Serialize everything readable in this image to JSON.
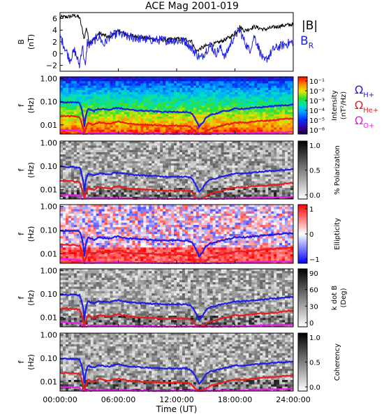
{
  "chart_data": {
    "title": "ACE Mag 2001-019",
    "xlabel": "Time (UT)",
    "x_ticks": [
      "00:00:00",
      "06:00:00",
      "12:00:00",
      "18:00:00",
      "24:00:00"
    ],
    "x_range_hours": [
      0,
      24
    ],
    "panels": [
      {
        "id": "field",
        "type": "line",
        "ylabel_main": "B",
        "ylabel_unit": "(nT)",
        "ylim": [
          -3,
          7
        ],
        "y_ticks": [
          "6",
          "4",
          "2",
          "0",
          "−2"
        ],
        "legend": [
          {
            "label": "|B|",
            "color": "#000000"
          },
          {
            "label": "B",
            "sub": "R",
            "color": "#1e1ee6"
          }
        ],
        "series": [
          {
            "name": "|B|",
            "color": "#000000",
            "x": [
              0,
              1,
              1.5,
              2,
              2.5,
              2.7,
              3,
              3.5,
              4,
              5,
              6,
              7,
              8,
              9,
              10,
              11,
              12,
              13,
              13.5,
              14,
              14.5,
              15,
              16,
              17,
              18,
              18.5,
              19,
              20,
              21,
              22,
              23,
              24
            ],
            "y": [
              6.2,
              6.3,
              6.5,
              6.2,
              2.5,
              4.5,
              2.0,
              2.4,
              3.5,
              2.8,
              3.8,
              3.2,
              2.9,
              2.6,
              2.4,
              2.3,
              2.5,
              2.4,
              2.2,
              0.4,
              0.9,
              1.3,
              1.7,
              2.4,
              3.3,
              4.6,
              3.9,
              4.6,
              4.1,
              4.5,
              4.8,
              5.0
            ]
          },
          {
            "name": "B_R",
            "color": "#1e1ee6",
            "x": [
              0,
              0.5,
              1,
              1.5,
              2,
              2.3,
              2.6,
              2.8,
              3,
              3.5,
              4,
              4.5,
              5,
              6,
              7,
              8,
              9,
              10,
              11,
              12,
              13,
              13.5,
              14,
              14.5,
              15,
              15.5,
              16,
              16.5,
              17,
              17.5,
              18,
              18.5,
              19,
              19.5,
              20,
              21,
              22,
              23,
              24
            ],
            "y": [
              3.0,
              1.0,
              -1.0,
              0.5,
              -2.0,
              1.5,
              -2.5,
              2.0,
              1.5,
              2.2,
              3.0,
              1.5,
              2.8,
              3.5,
              2.8,
              2.6,
              2.4,
              2.3,
              2.3,
              2.2,
              2.0,
              1.0,
              0.0,
              -0.8,
              0.5,
              1.5,
              0.0,
              1.0,
              -0.5,
              1.5,
              3.2,
              4.0,
              2.0,
              0.5,
              3.0,
              -1.5,
              0.8,
              1.5,
              2.0
            ]
          }
        ]
      },
      {
        "id": "intensity",
        "type": "heatmap",
        "ylabel_main": "f",
        "ylabel_unit": "(Hz)",
        "ylim": [
          0.004,
          1.2
        ],
        "yscale": "log",
        "y_ticks": [
          "1.00",
          "0.10",
          "0.01"
        ],
        "colorbar": {
          "colormap": "rainbow",
          "labels": [
            "10⁻¹",
            "10⁻²",
            "10⁻³",
            "10⁻⁴",
            "10⁻⁵",
            "10⁻⁶"
          ],
          "title": "Intensity",
          "title2": "(nT²/Hz)"
        }
      },
      {
        "id": "polarization",
        "type": "heatmap",
        "ylabel_main": "f",
        "ylabel_unit": "(Hz)",
        "ylim": [
          0.004,
          1.2
        ],
        "yscale": "log",
        "y_ticks": [
          "1.00",
          "0.10",
          "0.01"
        ],
        "colorbar": {
          "colormap": "gray",
          "labels": [
            "1.0",
            "0.5",
            "0.0"
          ],
          "title": "% Polarization"
        }
      },
      {
        "id": "ellipticity",
        "type": "heatmap",
        "ylabel_main": "f",
        "ylabel_unit": "(Hz)",
        "ylim": [
          0.004,
          1.2
        ],
        "yscale": "log",
        "y_ticks": [
          "1.00",
          "0.10",
          "0.01"
        ],
        "colorbar": {
          "colormap": "bwr",
          "labels": [
            "1",
            "0",
            "−1"
          ],
          "title": "Ellipticity"
        }
      },
      {
        "id": "kdotb",
        "type": "heatmap",
        "ylabel_main": "f",
        "ylabel_unit": "(Hz)",
        "ylim": [
          0.004,
          1.2
        ],
        "yscale": "log",
        "y_ticks": [
          "1.00",
          "0.10",
          "0.01"
        ],
        "colorbar": {
          "colormap": "gray",
          "labels": [
            "90",
            "60",
            "30",
            "0"
          ],
          "title": "k dot B",
          "title2": "(Deg)"
        }
      },
      {
        "id": "coherency",
        "type": "heatmap",
        "ylabel_main": "f",
        "ylabel_unit": "(Hz)",
        "ylim": [
          0.004,
          1.2
        ],
        "yscale": "log",
        "y_ticks": [
          "1.00",
          "0.10",
          "0.01"
        ],
        "colorbar": {
          "colormap": "gray",
          "labels": [
            "1.0",
            "0.5",
            "0.0"
          ],
          "title": "Coherency"
        }
      }
    ],
    "gyrofrequency_legend": [
      {
        "label": "Ω",
        "sub": "H+",
        "color": "#1e1ee6"
      },
      {
        "label": "Ω",
        "sub": "He+",
        "color": "#e61e1e"
      },
      {
        "label": "Ω",
        "sub": "O+",
        "color": "#e61ee6"
      }
    ],
    "gyro_lines": [
      {
        "name": "H+",
        "color": "#1e1ee6",
        "x": [
          0,
          1,
          2,
          2.3,
          2.5,
          2.7,
          2.9,
          3.1,
          3.5,
          4,
          5,
          6,
          7,
          8,
          9,
          10,
          11,
          12,
          13,
          13.5,
          14,
          14.3,
          14.7,
          15,
          15.5,
          16,
          16.5,
          17,
          17.5,
          18,
          19,
          20,
          21,
          22,
          23,
          24
        ],
        "y": [
          0.095,
          0.095,
          0.09,
          0.035,
          0.008,
          0.03,
          0.05,
          0.045,
          0.04,
          0.05,
          0.045,
          0.055,
          0.045,
          0.042,
          0.04,
          0.038,
          0.036,
          0.037,
          0.036,
          0.032,
          0.015,
          0.008,
          0.012,
          0.02,
          0.028,
          0.03,
          0.036,
          0.04,
          0.043,
          0.05,
          0.05,
          0.055,
          0.06,
          0.065,
          0.07,
          0.075
        ]
      },
      {
        "name": "He+",
        "color": "#e61e1e",
        "x": [
          0,
          1,
          2,
          2.3,
          2.5,
          2.7,
          2.9,
          3.1,
          3.5,
          4,
          5,
          6,
          7,
          8,
          9,
          10,
          11,
          12,
          13,
          13.5,
          14,
          14.3,
          14.7,
          15,
          15.5,
          16,
          16.5,
          17,
          17.5,
          18,
          19,
          20,
          21,
          22,
          23,
          24
        ],
        "y": [
          0.024,
          0.024,
          0.022,
          0.009,
          0.004,
          0.008,
          0.013,
          0.011,
          0.01,
          0.013,
          0.011,
          0.014,
          0.011,
          0.0105,
          0.01,
          0.0095,
          0.009,
          0.0093,
          0.009,
          0.008,
          0.0045,
          0.004,
          0.0045,
          0.005,
          0.007,
          0.0075,
          0.009,
          0.01,
          0.011,
          0.0125,
          0.0125,
          0.014,
          0.015,
          0.016,
          0.018,
          0.019
        ]
      },
      {
        "name": "O+",
        "color": "#e61ee6",
        "x": [
          0,
          1,
          2,
          2.3,
          2.5,
          2.7,
          2.9,
          3.1,
          3.5,
          4,
          5,
          6,
          7,
          8,
          9,
          10,
          11,
          12,
          13,
          13.5,
          14,
          14.3,
          14.7,
          15,
          15.5,
          16,
          16.5,
          17,
          17.5,
          18,
          19,
          20,
          21,
          22,
          23,
          24
        ],
        "y": [
          0.006,
          0.006,
          0.0056,
          0.0042,
          0.004,
          0.0042,
          0.0045,
          0.0043,
          0.0042,
          0.0044,
          0.0043,
          0.0045,
          0.0043,
          0.0042,
          0.0042,
          0.0041,
          0.0041,
          0.0041,
          0.0041,
          0.0041,
          0.004,
          0.004,
          0.004,
          0.004,
          0.0041,
          0.0041,
          0.0041,
          0.0042,
          0.0042,
          0.0043,
          0.0043,
          0.0045,
          0.0046,
          0.0047,
          0.0048,
          0.005
        ]
      }
    ]
  }
}
